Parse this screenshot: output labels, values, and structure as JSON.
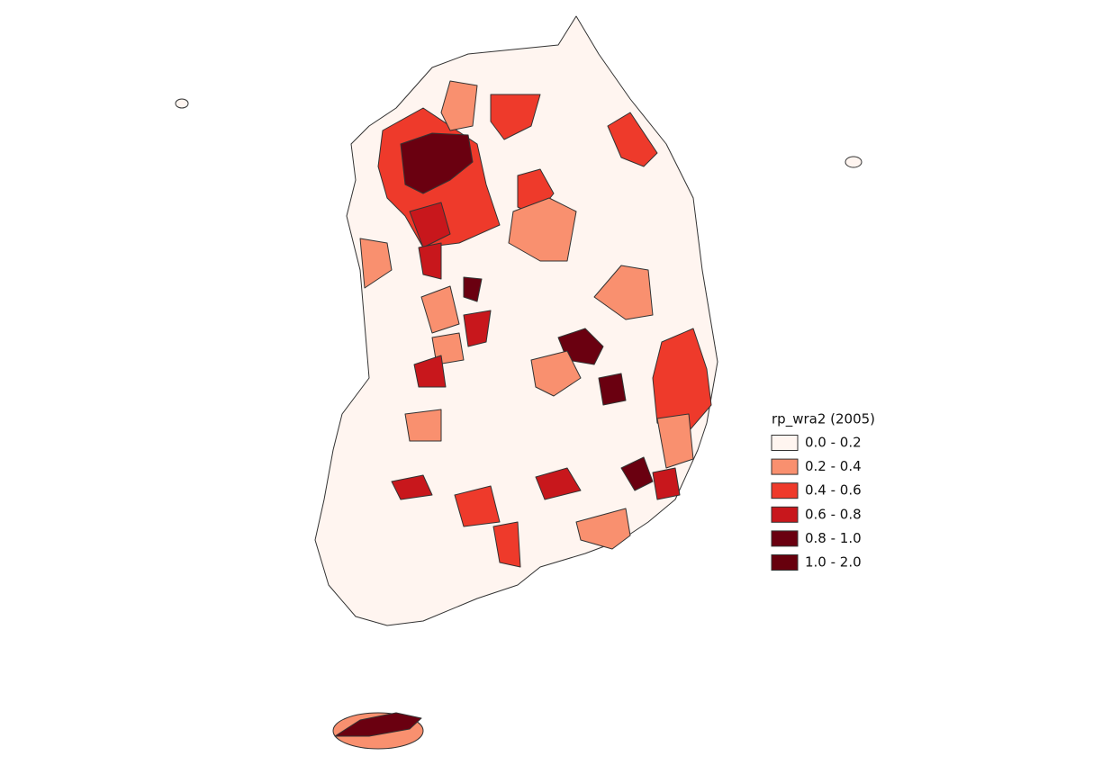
{
  "legend": {
    "title": "rp_wra2 (2005)",
    "items": [
      {
        "label": "0.0 - 0.2",
        "color": "#fff5f0"
      },
      {
        "label": "0.2 - 0.4",
        "color": "#f9906f"
      },
      {
        "label": "0.4 - 0.6",
        "color": "#ee3a2b"
      },
      {
        "label": "0.6 - 0.8",
        "color": "#c8171c"
      },
      {
        "label": "0.8 - 1.0",
        "color": "#6a0010"
      },
      {
        "label": "1.0 - 2.0",
        "color": "#67000d"
      }
    ]
  }
}
